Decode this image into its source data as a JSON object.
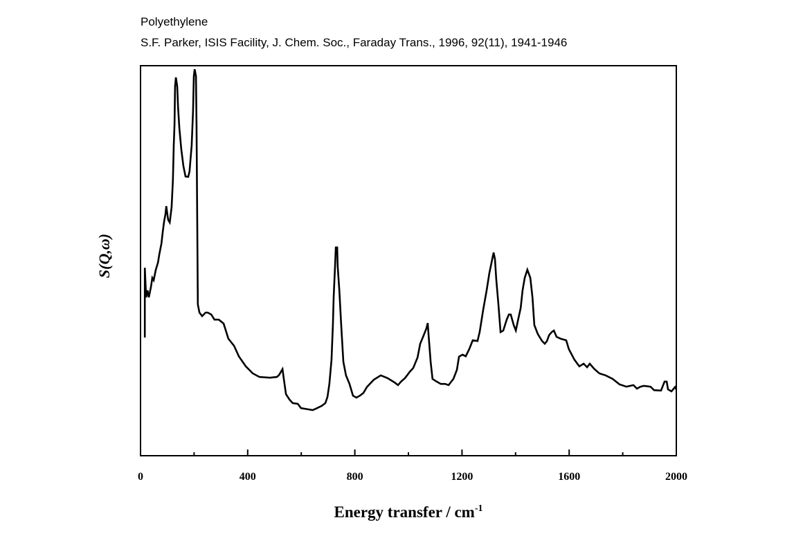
{
  "chart_data": {
    "type": "line",
    "title": "Polyethylene",
    "subtitle": "S.F. Parker, ISIS Facility, J. Chem. Soc., Faraday Trans., 1996, 92(11), 1941-1946",
    "xlabel": "Energy transfer / cm",
    "xlabel_superscript": "-1",
    "ylabel": "S(Q,ω)",
    "xlim": [
      0,
      2000
    ],
    "ylim": [
      0,
      100
    ],
    "y_units": "arbitrary",
    "grid": false,
    "x_ticks": [
      0,
      400,
      800,
      1200,
      1600,
      2000
    ],
    "x_tick_labels": [
      "0",
      "400",
      "800",
      "1200",
      "1600",
      "2000"
    ],
    "x_minor_ticks": [
      200,
      600,
      1000,
      1400,
      1800
    ],
    "series": [
      {
        "name": "Polyethylene",
        "color": "#000000",
        "x": [
          16,
          16,
          21,
          26,
          31,
          39,
          44,
          49,
          57,
          65,
          70,
          78,
          83,
          88,
          93,
          96,
          103,
          109,
          116,
          121,
          124,
          127,
          129,
          132,
          137,
          140,
          145,
          152,
          160,
          168,
          178,
          183,
          191,
          196,
          199,
          202,
          207,
          209,
          212,
          214,
          220,
          230,
          243,
          251,
          264,
          276,
          292,
          310,
          328,
          349,
          367,
          393,
          419,
          444,
          483,
          509,
          517,
          530,
          535,
          543,
          556,
          568,
          587,
          599,
          625,
          643,
          659,
          677,
          690,
          698,
          705,
          713,
          718,
          721,
          726,
          729,
          734,
          736,
          742,
          749,
          757,
          767,
          780,
          793,
          806,
          819,
          832,
          845,
          871,
          897,
          922,
          948,
          961,
          974,
          987,
          1005,
          1018,
          1034,
          1044,
          1057,
          1067,
          1072,
          1075,
          1083,
          1090,
          1103,
          1121,
          1137,
          1150,
          1168,
          1181,
          1189,
          1202,
          1214,
          1227,
          1240,
          1258,
          1266,
          1279,
          1292,
          1302,
          1313,
          1318,
          1323,
          1328,
          1336,
          1344,
          1354,
          1367,
          1375,
          1382,
          1393,
          1401,
          1408,
          1419,
          1426,
          1434,
          1444,
          1455,
          1463,
          1470,
          1483,
          1499,
          1509,
          1517,
          1525,
          1535,
          1543,
          1553,
          1568,
          1589,
          1599,
          1620,
          1638,
          1654,
          1667,
          1677,
          1693,
          1713,
          1736,
          1762,
          1788,
          1814,
          1840,
          1853,
          1866,
          1879,
          1904,
          1917,
          1943,
          1956,
          1964,
          1969,
          1982,
          1995,
          2000
        ],
        "y": [
          30.3,
          48.2,
          40.6,
          42.4,
          40.6,
          43.3,
          45.6,
          45.0,
          47.7,
          49.5,
          51.6,
          54.4,
          57.4,
          60.1,
          61.9,
          64.0,
          60.5,
          59.8,
          63.7,
          70.7,
          79.6,
          84.9,
          94.7,
          97.0,
          94.7,
          89.4,
          84.0,
          78.7,
          74.3,
          71.6,
          71.5,
          72.9,
          79.6,
          88.5,
          97.3,
          99.1,
          97.3,
          84.9,
          58.3,
          38.8,
          36.7,
          35.8,
          36.7,
          36.7,
          36.2,
          34.9,
          34.9,
          33.9,
          30.0,
          28.2,
          25.5,
          22.9,
          21.1,
          20.2,
          20.0,
          20.2,
          20.7,
          22.2,
          19.7,
          15.8,
          14.4,
          13.5,
          13.3,
          12.2,
          11.9,
          11.7,
          12.2,
          12.8,
          13.5,
          15.1,
          18.4,
          24.6,
          33.5,
          40.6,
          48.6,
          53.4,
          53.4,
          48.6,
          42.4,
          33.5,
          24.1,
          20.6,
          18.4,
          15.4,
          14.9,
          15.4,
          16.1,
          17.6,
          19.5,
          20.6,
          19.9,
          18.8,
          18.1,
          19.1,
          19.9,
          21.5,
          22.5,
          25.2,
          28.7,
          30.9,
          32.6,
          34.0,
          31.2,
          24.1,
          19.7,
          19.1,
          18.4,
          18.4,
          18.1,
          19.7,
          22.0,
          25.4,
          25.9,
          25.5,
          27.3,
          29.6,
          29.4,
          31.7,
          37.4,
          42.4,
          46.8,
          50.4,
          52.1,
          50.4,
          45.2,
          38.8,
          31.7,
          32.1,
          34.9,
          36.2,
          36.2,
          33.5,
          32.1,
          34.4,
          37.9,
          42.4,
          45.6,
          47.7,
          45.6,
          40.6,
          33.5,
          31.2,
          29.4,
          28.7,
          29.4,
          30.9,
          31.7,
          32.1,
          30.5,
          30.0,
          29.6,
          27.3,
          24.6,
          22.9,
          23.6,
          22.7,
          23.6,
          22.3,
          21.1,
          20.6,
          19.7,
          18.3,
          17.7,
          18.1,
          17.2,
          17.7,
          17.9,
          17.7,
          16.8,
          16.7,
          19.0,
          19.0,
          17.0,
          16.5,
          17.6,
          17.0
        ]
      }
    ]
  }
}
